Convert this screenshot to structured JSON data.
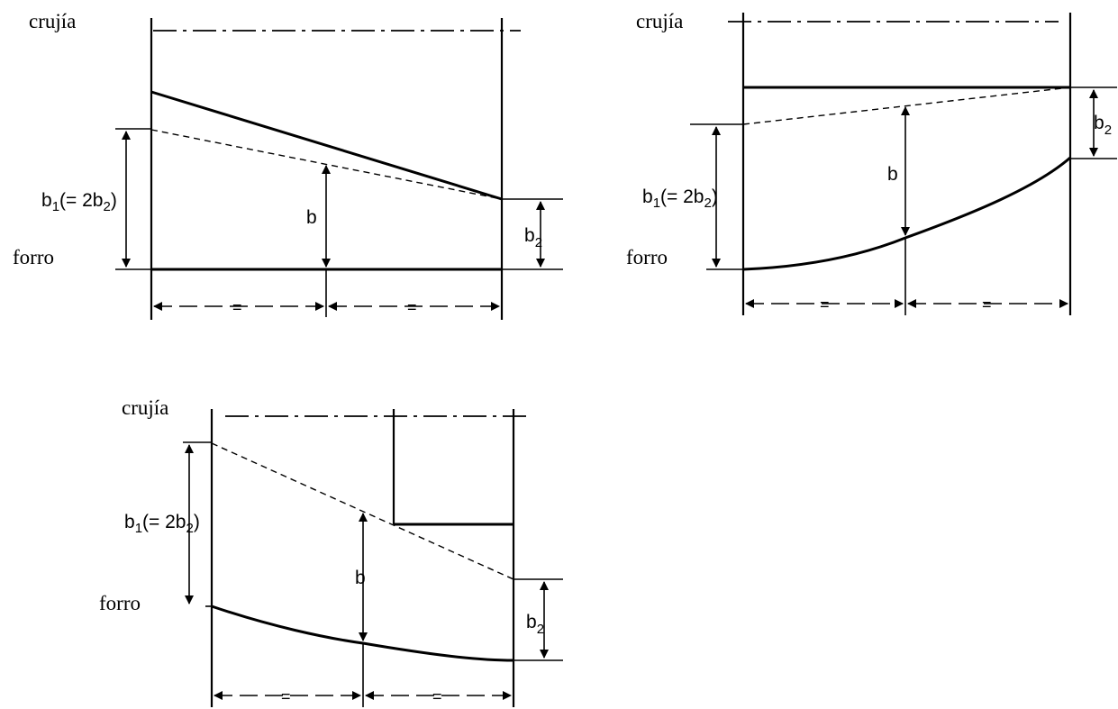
{
  "labels": {
    "crujia": "crujía",
    "forro": "forro",
    "b": "b",
    "b1_main": "b",
    "b1_sub": "1",
    "b1_rest_a": "(= 2b",
    "b1_rest_sub": "2",
    "b1_rest_b": ")",
    "b2_main": "b",
    "b2_sub": "2",
    "equal": "="
  },
  "colors": {
    "line": "#000000",
    "background": "#ffffff"
  }
}
